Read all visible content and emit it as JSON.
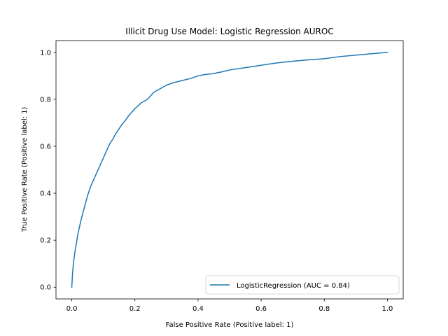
{
  "chart_data": {
    "type": "line",
    "title": "Illicit Drug Use Model:  Logistic Regression AUROC",
    "xlabel": "False Positive Rate (Positive label: 1)",
    "ylabel": "True Positive Rate (Positive label: 1)",
    "xlim": [
      -0.05,
      1.05
    ],
    "ylim": [
      -0.05,
      1.05
    ],
    "xticks": [
      0.0,
      0.2,
      0.4,
      0.6,
      0.8,
      1.0
    ],
    "yticks": [
      0.0,
      0.2,
      0.4,
      0.6,
      0.8,
      1.0
    ],
    "xtick_labels": [
      "0.0",
      "0.2",
      "0.4",
      "0.6",
      "0.8",
      "1.0"
    ],
    "ytick_labels": [
      "0.0",
      "0.2",
      "0.4",
      "0.6",
      "0.8",
      "1.0"
    ],
    "grid": false,
    "legend_position": "lower-right",
    "series": [
      {
        "name": "LogisticRegression (AUC = 0.84)",
        "color": "#1f77b4",
        "x": [
          0.0,
          0.002,
          0.005,
          0.01,
          0.015,
          0.02,
          0.03,
          0.04,
          0.05,
          0.06,
          0.07,
          0.08,
          0.09,
          0.1,
          0.11,
          0.12,
          0.13,
          0.14,
          0.15,
          0.16,
          0.17,
          0.18,
          0.19,
          0.2,
          0.22,
          0.24,
          0.25,
          0.26,
          0.28,
          0.3,
          0.32,
          0.35,
          0.38,
          0.4,
          0.42,
          0.45,
          0.48,
          0.5,
          0.55,
          0.6,
          0.65,
          0.7,
          0.75,
          0.8,
          0.85,
          0.9,
          0.95,
          1.0
        ],
        "y": [
          0.0,
          0.05,
          0.1,
          0.15,
          0.19,
          0.23,
          0.29,
          0.34,
          0.39,
          0.43,
          0.46,
          0.49,
          0.52,
          0.55,
          0.58,
          0.61,
          0.63,
          0.655,
          0.675,
          0.695,
          0.71,
          0.73,
          0.745,
          0.76,
          0.785,
          0.8,
          0.815,
          0.83,
          0.845,
          0.86,
          0.87,
          0.88,
          0.89,
          0.9,
          0.905,
          0.91,
          0.918,
          0.925,
          0.935,
          0.945,
          0.955,
          0.962,
          0.968,
          0.973,
          0.982,
          0.988,
          0.994,
          1.0
        ]
      }
    ]
  }
}
